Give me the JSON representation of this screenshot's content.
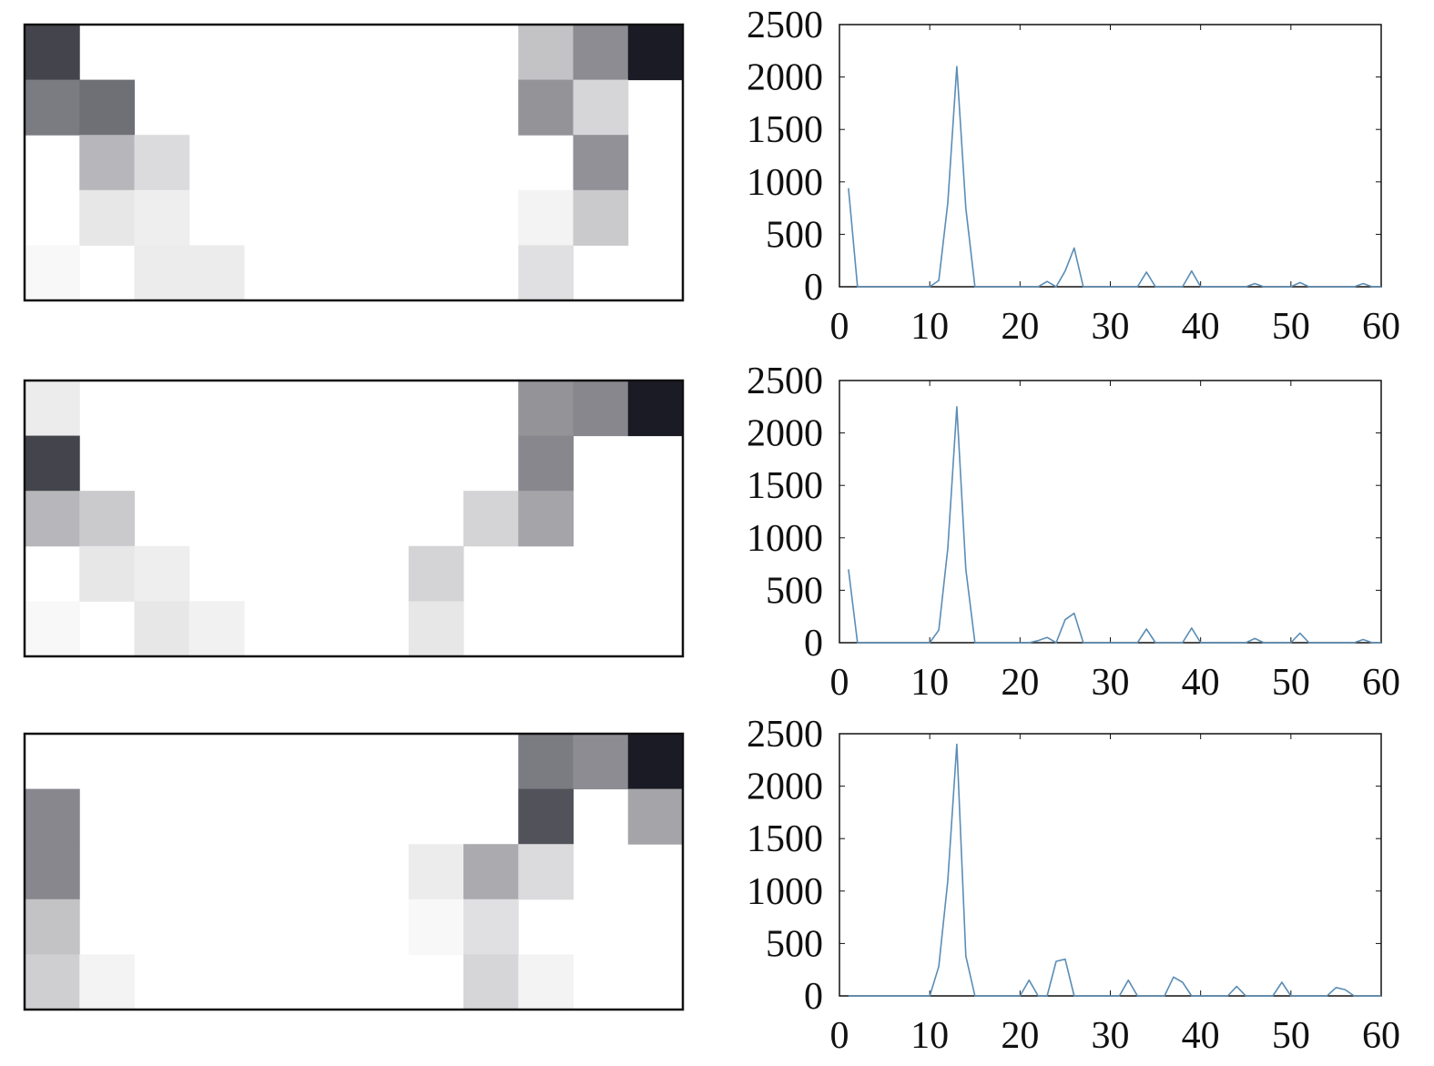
{
  "colors": {
    "line": "#5b8db5",
    "frame": "#111111",
    "background": "#ffffff"
  },
  "chart_data": [
    {
      "type": "heatmap",
      "rows": 5,
      "cols": 12,
      "value_scale": "darkness 0 (white) to 1 (black)",
      "values": [
        [
          0.78,
          0,
          0,
          0,
          0,
          0,
          0,
          0,
          0,
          0.25,
          0.48,
          0.95
        ],
        [
          0.55,
          0.6,
          0,
          0,
          0,
          0,
          0,
          0,
          0,
          0.45,
          0.17,
          0
        ],
        [
          0,
          0.3,
          0.15,
          0,
          0,
          0,
          0,
          0,
          0,
          0,
          0.46,
          0
        ],
        [
          0,
          0.1,
          0.07,
          0,
          0,
          0,
          0,
          0,
          0,
          0.05,
          0.22,
          0
        ],
        [
          0.03,
          0,
          0.08,
          0.08,
          0,
          0,
          0,
          0,
          0,
          0.13,
          0,
          0
        ]
      ]
    },
    {
      "type": "line",
      "xlim": [
        0,
        60
      ],
      "ylim": [
        0,
        2500
      ],
      "xticks": [
        "0",
        "10",
        "20",
        "30",
        "40",
        "50",
        "60"
      ],
      "yticks": [
        "0",
        "500",
        "1000",
        "1500",
        "2000",
        "2500"
      ],
      "series": [
        {
          "x": [
            1,
            2,
            3,
            4,
            5,
            6,
            7,
            8,
            9,
            10,
            11,
            12,
            13,
            14,
            15,
            16,
            17,
            18,
            19,
            20,
            21,
            22,
            23,
            24,
            25,
            26,
            27,
            28,
            29,
            30,
            31,
            32,
            33,
            34,
            35,
            36,
            37,
            38,
            39,
            40,
            41,
            42,
            43,
            44,
            45,
            46,
            47,
            48,
            49,
            50,
            51,
            52,
            53,
            54,
            55,
            56,
            57,
            58,
            59,
            60
          ],
          "y": [
            940,
            0,
            0,
            0,
            0,
            0,
            0,
            0,
            0,
            0,
            60,
            800,
            2100,
            750,
            0,
            0,
            0,
            0,
            0,
            0,
            0,
            0,
            50,
            0,
            150,
            370,
            0,
            0,
            0,
            0,
            0,
            0,
            0,
            140,
            0,
            0,
            0,
            0,
            150,
            0,
            0,
            0,
            0,
            0,
            0,
            30,
            0,
            0,
            0,
            0,
            40,
            0,
            0,
            0,
            0,
            0,
            0,
            30,
            0,
            0
          ]
        }
      ]
    },
    {
      "type": "heatmap",
      "rows": 5,
      "cols": 12,
      "value_scale": "darkness 0 (white) to 1 (black)",
      "values": [
        [
          0.08,
          0,
          0,
          0,
          0,
          0,
          0,
          0,
          0,
          0.45,
          0.5,
          0.95
        ],
        [
          0.78,
          0,
          0,
          0,
          0,
          0,
          0,
          0,
          0,
          0.5,
          0,
          0
        ],
        [
          0.3,
          0.22,
          0,
          0,
          0,
          0,
          0,
          0,
          0.18,
          0.38,
          0,
          0
        ],
        [
          0,
          0.1,
          0.07,
          0,
          0,
          0,
          0,
          0.18,
          0,
          0,
          0,
          0
        ],
        [
          0.03,
          0,
          0.1,
          0.06,
          0,
          0,
          0,
          0.1,
          0,
          0,
          0,
          0
        ]
      ]
    },
    {
      "type": "line",
      "xlim": [
        0,
        60
      ],
      "ylim": [
        0,
        2500
      ],
      "xticks": [
        "0",
        "10",
        "20",
        "30",
        "40",
        "50",
        "60"
      ],
      "yticks": [
        "0",
        "500",
        "1000",
        "1500",
        "2000",
        "2500"
      ],
      "series": [
        {
          "x": [
            1,
            2,
            3,
            4,
            5,
            6,
            7,
            8,
            9,
            10,
            11,
            12,
            13,
            14,
            15,
            16,
            17,
            18,
            19,
            20,
            21,
            22,
            23,
            24,
            25,
            26,
            27,
            28,
            29,
            30,
            31,
            32,
            33,
            34,
            35,
            36,
            37,
            38,
            39,
            40,
            41,
            42,
            43,
            44,
            45,
            46,
            47,
            48,
            49,
            50,
            51,
            52,
            53,
            54,
            55,
            56,
            57,
            58,
            59,
            60
          ],
          "y": [
            700,
            0,
            0,
            0,
            0,
            0,
            0,
            0,
            0,
            0,
            120,
            900,
            2250,
            700,
            0,
            0,
            0,
            0,
            0,
            0,
            0,
            20,
            50,
            0,
            220,
            280,
            0,
            0,
            0,
            0,
            0,
            0,
            0,
            130,
            0,
            0,
            0,
            0,
            140,
            0,
            0,
            0,
            0,
            0,
            0,
            40,
            0,
            0,
            0,
            0,
            90,
            0,
            0,
            0,
            0,
            0,
            0,
            30,
            0,
            0
          ]
        }
      ]
    },
    {
      "type": "heatmap",
      "rows": 5,
      "cols": 12,
      "value_scale": "darkness 0 (white) to 1 (black)",
      "values": [
        [
          0,
          0,
          0,
          0,
          0,
          0,
          0,
          0,
          0,
          0.55,
          0.48,
          0.95
        ],
        [
          0.5,
          0,
          0,
          0,
          0,
          0,
          0,
          0,
          0,
          0.72,
          0,
          0.38
        ],
        [
          0.5,
          0,
          0,
          0,
          0,
          0,
          0,
          0.08,
          0.35,
          0.15,
          0,
          0
        ],
        [
          0.25,
          0,
          0,
          0,
          0,
          0,
          0,
          0.03,
          0.13,
          0,
          0,
          0
        ],
        [
          0.2,
          0.05,
          0,
          0,
          0,
          0,
          0,
          0,
          0.17,
          0.05,
          0,
          0
        ]
      ]
    },
    {
      "type": "line",
      "xlim": [
        0,
        60
      ],
      "ylim": [
        0,
        2500
      ],
      "xticks": [
        "0",
        "10",
        "20",
        "30",
        "40",
        "50",
        "60"
      ],
      "yticks": [
        "0",
        "500",
        "1000",
        "1500",
        "2000",
        "2500"
      ],
      "series": [
        {
          "x": [
            1,
            2,
            3,
            4,
            5,
            6,
            7,
            8,
            9,
            10,
            11,
            12,
            13,
            14,
            15,
            16,
            17,
            18,
            19,
            20,
            21,
            22,
            23,
            24,
            25,
            26,
            27,
            28,
            29,
            30,
            31,
            32,
            33,
            34,
            35,
            36,
            37,
            38,
            39,
            40,
            41,
            42,
            43,
            44,
            45,
            46,
            47,
            48,
            49,
            50,
            51,
            52,
            53,
            54,
            55,
            56,
            57,
            58,
            59,
            60
          ],
          "y": [
            0,
            0,
            0,
            0,
            0,
            0,
            0,
            0,
            0,
            0,
            280,
            1100,
            2400,
            380,
            0,
            0,
            0,
            0,
            0,
            0,
            150,
            0,
            0,
            330,
            350,
            0,
            0,
            0,
            0,
            0,
            0,
            150,
            0,
            0,
            0,
            0,
            180,
            130,
            0,
            0,
            0,
            0,
            0,
            90,
            0,
            0,
            0,
            0,
            130,
            0,
            0,
            0,
            0,
            0,
            80,
            60,
            0,
            0,
            0,
            0
          ]
        }
      ]
    }
  ]
}
